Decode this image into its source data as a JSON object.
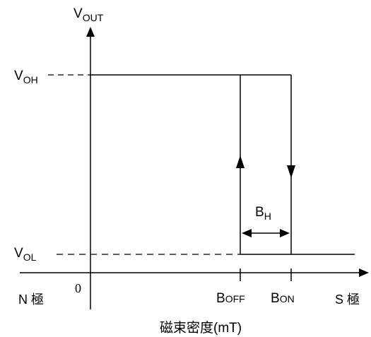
{
  "labels": {
    "y_axis": {
      "main": "V",
      "sub": "OUT"
    },
    "voh": {
      "main": "V",
      "sub": "OH"
    },
    "vol": {
      "main": "V",
      "sub": "OL"
    },
    "bh": {
      "main": "B",
      "sub": "H"
    },
    "boff": {
      "main": "B",
      "sub": "OFF"
    },
    "bon": {
      "main": "B",
      "sub": "ON"
    },
    "origin": "0",
    "n_pole": "N 極",
    "s_pole": "S 極",
    "x_axis_title": "磁束密度(mT)"
  },
  "colors": {
    "ink": "#000000",
    "background": "#ffffff"
  }
}
